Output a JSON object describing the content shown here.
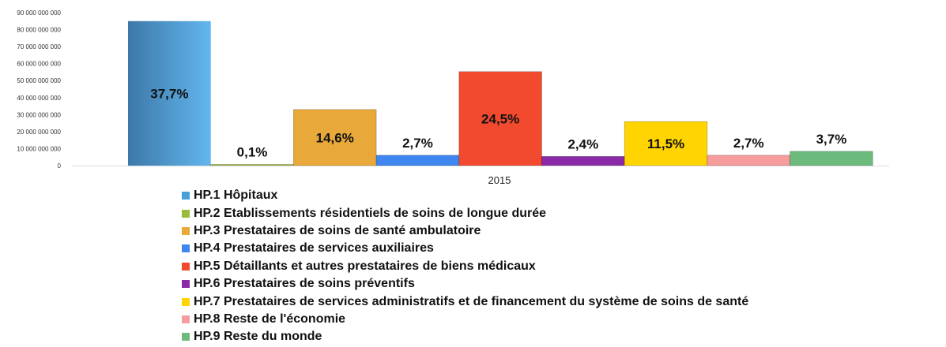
{
  "chart_data": {
    "type": "bar",
    "categories": [
      "2015"
    ],
    "series": [
      {
        "name": "HP.1 Hôpitaux",
        "values": [
          85000000000
        ],
        "label": "37,7%",
        "color": "#4a9fd8",
        "gradient": true
      },
      {
        "name": "HP.2 Etablissements résidentiels de soins de longue durée",
        "values": [
          200000000
        ],
        "label": "0,1%",
        "color": "#9bbb3a"
      },
      {
        "name": "HP.3 Prestataires de soins de santé ambulatoire",
        "values": [
          33000000000
        ],
        "label": "14,6%",
        "color": "#e8a83a"
      },
      {
        "name": "HP.4 Prestataires de services auxiliaires",
        "values": [
          6100000000
        ],
        "label": "2,7%",
        "color": "#3f86f0"
      },
      {
        "name": "HP.5 Détaillants et autres prestataires de biens médicaux",
        "values": [
          55300000000
        ],
        "label": "24,5%",
        "color": "#f24a2e"
      },
      {
        "name": "HP.6 Prestataires de soins préventifs",
        "values": [
          5400000000
        ],
        "label": "2,4%",
        "color": "#8a2aa8"
      },
      {
        "name": "HP.7 Prestataires de services administratifs et de financement du système de soins de santé",
        "values": [
          25900000000
        ],
        "label": "11,5%",
        "color": "#ffd400"
      },
      {
        "name": "HP.8 Reste de l'économie",
        "values": [
          6100000000
        ],
        "label": "2,7%",
        "color": "#f59c9c"
      },
      {
        "name": "HP.9 Reste du monde",
        "values": [
          8400000000
        ],
        "label": "3,7%",
        "color": "#6cbb7c"
      }
    ],
    "yticks": [
      "0",
      "10 000 000 000",
      "20 000 000 000",
      "30 000 000 000",
      "40 000 000 000",
      "50 000 000 000",
      "60 000 000 000",
      "70 000 000 000",
      "80 000 000 000",
      "90 000 000 000"
    ],
    "ylim": [
      0,
      90000000000
    ],
    "grid": false,
    "legend_position": "bottom",
    "title": "",
    "xlabel": "",
    "ylabel": ""
  }
}
